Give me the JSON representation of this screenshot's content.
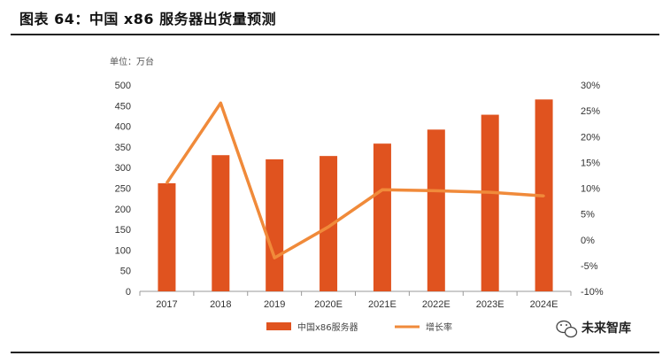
{
  "figure": {
    "title": "图表 64：中国 x86 服务器出货量预测",
    "watermark": "未来智库",
    "watermark_icon": "wechat-icon"
  },
  "chart_data": {
    "type": "bar",
    "unit_label": "单位：万台",
    "categories": [
      "2017",
      "2018",
      "2019",
      "2020E",
      "2021E",
      "2022E",
      "2023E",
      "2024E"
    ],
    "series": [
      {
        "name": "中国x86服务器",
        "type": "bar",
        "axis": "left",
        "color": "#E0531F",
        "values": [
          262,
          330,
          320,
          328,
          358,
          392,
          428,
          465
        ]
      },
      {
        "name": "增长率",
        "type": "line",
        "axis": "right",
        "color": "#F08A3A",
        "values": [
          11,
          26.5,
          -3.5,
          2.5,
          9.7,
          9.5,
          9.2,
          8.5
        ]
      }
    ],
    "y_left": {
      "min": 0,
      "max": 500,
      "step": 50,
      "ticks": [
        "0",
        "50",
        "100",
        "150",
        "200",
        "250",
        "300",
        "350",
        "400",
        "450",
        "500"
      ]
    },
    "y_right": {
      "min": -10,
      "max": 30,
      "step": 5,
      "ticks": [
        "-10%",
        "-5%",
        "0%",
        "5%",
        "10%",
        "15%",
        "20%",
        "25%",
        "30%"
      ]
    },
    "grid": false,
    "legend_position": "bottom"
  }
}
